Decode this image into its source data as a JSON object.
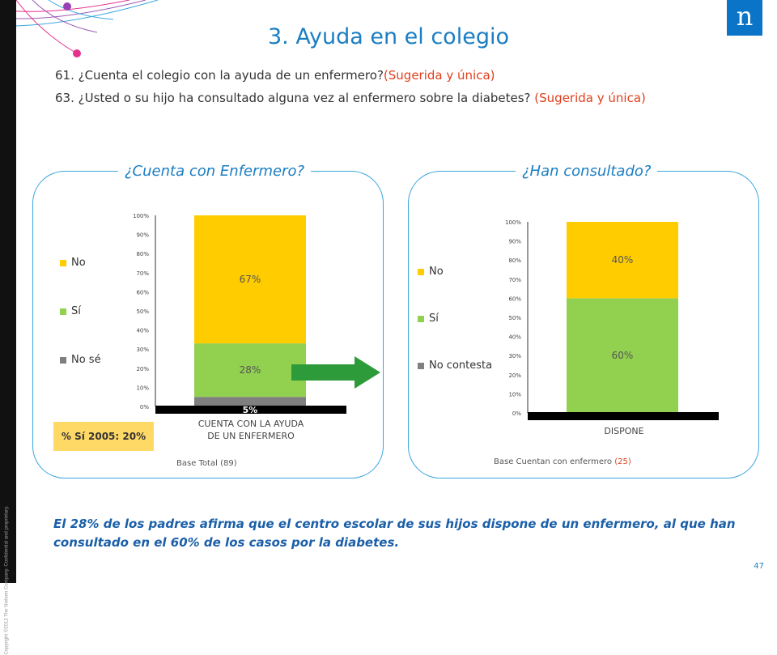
{
  "copyright": "Copyright ©2012 The Nielsen Company. Confidential and proprietary.",
  "logo_letter": "n",
  "title": "3. Ayuda en el colegio",
  "questions": [
    {
      "text": "61. ¿Cuenta el colegio con la ayuda de un enfermero?",
      "note": "(Sugerida y única)"
    },
    {
      "text": "63. ¿Usted o su hijo ha consultado alguna vez al enfermero sobre la diabetes? ",
      "note": "(Sugerida y única)"
    }
  ],
  "colors": {
    "accent": "#1a7ec2",
    "no": "#ffcc00",
    "si": "#92d050",
    "nose": "#7f7f7f",
    "arrow": "#2e9b3a",
    "note_red": "#e0401e"
  },
  "chart_data": [
    {
      "type": "bar",
      "stacked": true,
      "title": "¿Cuenta con Enfermero?",
      "categories": [
        "CUENTA CON LA AYUDA DE UN ENFERMERO"
      ],
      "category_lines": [
        "CUENTA CON LA AYUDA",
        "DE UN ENFERMERO"
      ],
      "series": [
        {
          "name": "No sé",
          "values": [
            5
          ],
          "label": "5%",
          "color": "#7f7f7f"
        },
        {
          "name": "Sí",
          "values": [
            28
          ],
          "label": "28%",
          "color": "#92d050"
        },
        {
          "name": "No",
          "values": [
            67
          ],
          "label": "67%",
          "color": "#ffcc00"
        }
      ],
      "legend": [
        "No",
        "Sí",
        "No sé"
      ],
      "legend_placement": "left",
      "ylim": [
        0,
        100
      ],
      "yticks": [
        "0%",
        "10%",
        "20%",
        "30%",
        "40%",
        "50%",
        "60%",
        "70%",
        "80%",
        "90%",
        "100%"
      ],
      "grid": false,
      "base_label": "Base Total ",
      "base_value": "(89)"
    },
    {
      "type": "bar",
      "stacked": true,
      "title": "¿Han consultado?",
      "categories": [
        "DISPONE"
      ],
      "category_lines": [
        "DISPONE"
      ],
      "series": [
        {
          "name": "No contesta",
          "values": [
            0
          ],
          "label": "",
          "color": "#7f7f7f"
        },
        {
          "name": "Sí",
          "values": [
            60
          ],
          "label": "60%",
          "color": "#92d050"
        },
        {
          "name": "No",
          "values": [
            40
          ],
          "label": "40%",
          "color": "#ffcc00"
        }
      ],
      "legend": [
        "No",
        "Sí",
        "No contesta"
      ],
      "legend_placement": "left",
      "ylim": [
        0,
        100
      ],
      "yticks": [
        "0%",
        "10%",
        "20%",
        "30%",
        "40%",
        "50%",
        "60%",
        "70%",
        "80%",
        "90%",
        "100%"
      ],
      "grid": false,
      "base_label": "Base  Cuentan con enfermero ",
      "base_value": "(25)"
    }
  ],
  "badge": "% Sí 2005: 20%",
  "conclusion": "El 28% de los padres afirma que el centro escolar de sus hijos dispone de un enfermero, al que han consultado en el 60% de los casos por la diabetes.",
  "page_number": "47"
}
